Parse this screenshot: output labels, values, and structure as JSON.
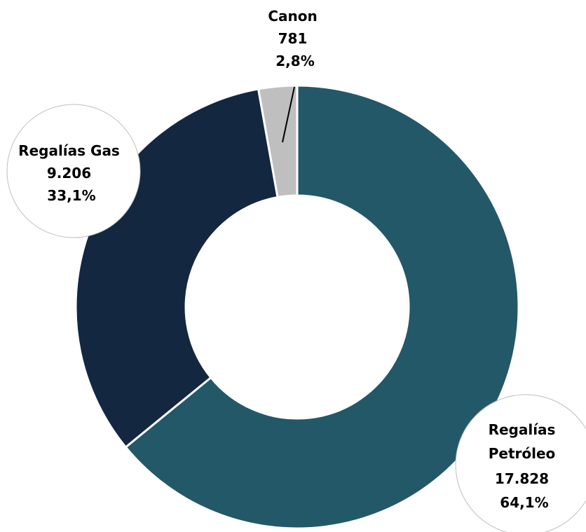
{
  "chart_data": {
    "type": "pie",
    "donut": true,
    "slices": [
      {
        "name": "Regalías Petróleo",
        "label_lines": [
          "Regalías",
          "Petróleo"
        ],
        "value": 17828,
        "value_label": "17.828",
        "percent": 64.1,
        "percent_label": "64,1%",
        "color": "#235868"
      },
      {
        "name": "Regalías Gas",
        "label_lines": [
          "Regalías Gas"
        ],
        "value": 9206,
        "value_label": "9.206",
        "percent": 33.1,
        "percent_label": "33,1%",
        "color": "#132741"
      },
      {
        "name": "Canon",
        "label_lines": [
          "Canon"
        ],
        "value": 781,
        "value_label": "781",
        "percent": 2.8,
        "percent_label": "2,8%",
        "color": "#bfbfbf"
      }
    ],
    "title": "",
    "legend": "none"
  }
}
